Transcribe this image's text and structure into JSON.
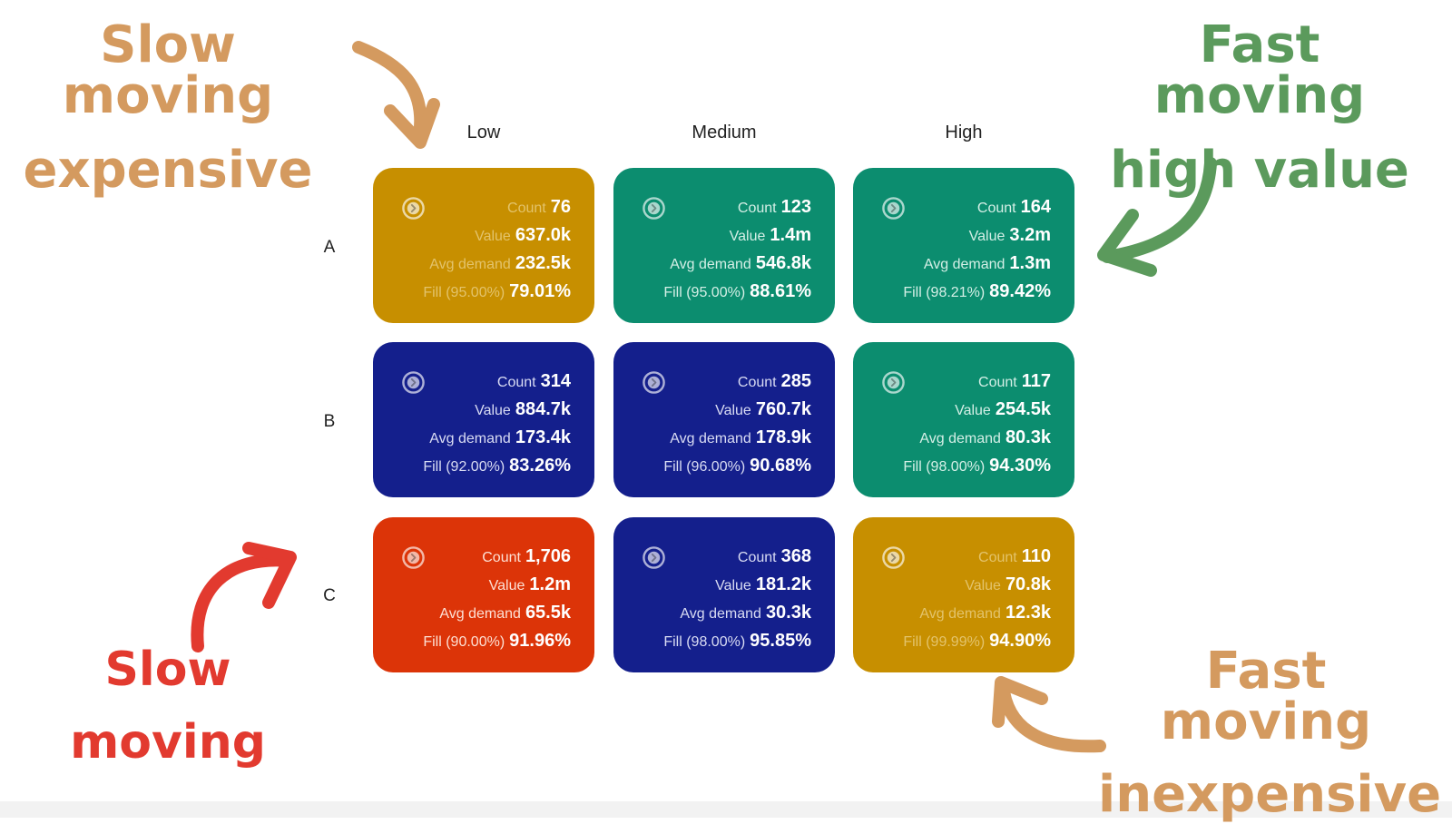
{
  "columns": [
    "Low",
    "Medium",
    "High"
  ],
  "rows": [
    "A",
    "B",
    "C"
  ],
  "cells": [
    [
      {
        "count": "76",
        "value": "637.0k",
        "avg_demand": "232.5k",
        "fill_target": "Fill (95.00%)",
        "fill": "79.01%",
        "color": "#c78f00"
      },
      {
        "count": "123",
        "value": "1.4m",
        "avg_demand": "546.8k",
        "fill_target": "Fill (95.00%)",
        "fill": "88.61%",
        "color": "#0c8d6f"
      },
      {
        "count": "164",
        "value": "3.2m",
        "avg_demand": "1.3m",
        "fill_target": "Fill (98.21%)",
        "fill": "89.42%",
        "color": "#0c8d6f"
      }
    ],
    [
      {
        "count": "314",
        "value": "884.7k",
        "avg_demand": "173.4k",
        "fill_target": "Fill (92.00%)",
        "fill": "83.26%",
        "color": "#141f8c"
      },
      {
        "count": "285",
        "value": "760.7k",
        "avg_demand": "178.9k",
        "fill_target": "Fill (96.00%)",
        "fill": "90.68%",
        "color": "#141f8c"
      },
      {
        "count": "117",
        "value": "254.5k",
        "avg_demand": "80.3k",
        "fill_target": "Fill (98.00%)",
        "fill": "94.30%",
        "color": "#0c8d6f"
      }
    ],
    [
      {
        "count": "1,706",
        "value": "1.2m",
        "avg_demand": "65.5k",
        "fill_target": "Fill (90.00%)",
        "fill": "91.96%",
        "color": "#dc3408"
      },
      {
        "count": "368",
        "value": "181.2k",
        "avg_demand": "30.3k",
        "fill_target": "Fill (98.00%)",
        "fill": "95.85%",
        "color": "#141f8c"
      },
      {
        "count": "110",
        "value": "70.8k",
        "avg_demand": "12.3k",
        "fill_target": "Fill (99.99%)",
        "fill": "94.90%",
        "color": "#c78f00"
      }
    ]
  ],
  "labels": {
    "count": "Count",
    "value": "Value",
    "avg_demand": "Avg demand"
  },
  "annotations": {
    "top_left": {
      "line1": "Slow moving",
      "line2": "expensive",
      "color": "#d49a5f"
    },
    "top_right": {
      "line1": "Fast moving",
      "line2": "high value",
      "color": "#5b9a5c"
    },
    "bottom_left": {
      "line1": "Slow",
      "line2": "moving",
      "color": "#e23a2f"
    },
    "bottom_right": {
      "line1": "Fast moving",
      "line2": "inexpensive",
      "color": "#d49a5f"
    }
  },
  "icons": {
    "card_nav": "chevron-circle-icon"
  }
}
